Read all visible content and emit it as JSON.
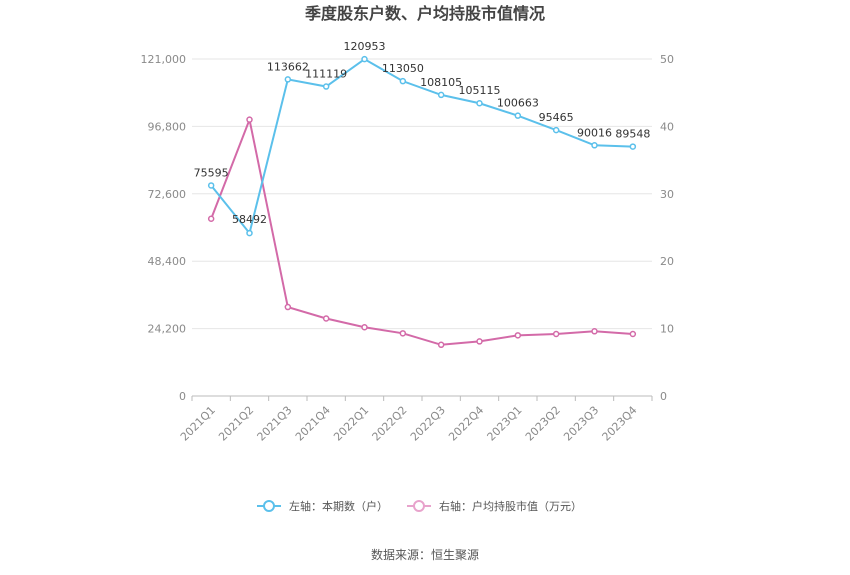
{
  "chart_data": {
    "type": "line",
    "title": "季度股东户数、户均持股市值情况",
    "categories": [
      "2021Q1",
      "2021Q2",
      "2021Q3",
      "2021Q4",
      "2022Q1",
      "2022Q2",
      "2022Q3",
      "2022Q4",
      "2023Q1",
      "2023Q2",
      "2023Q3",
      "2023Q4"
    ],
    "left_axis": {
      "ylim": [
        0,
        121000
      ],
      "ticks": [
        0,
        24200,
        48400,
        72600,
        96800,
        121000
      ],
      "tick_labels": [
        "0",
        "24,200",
        "48,400",
        "72,600",
        "96,800",
        "121,000"
      ]
    },
    "right_axis": {
      "ylim": [
        0,
        50
      ],
      "ticks": [
        0,
        10,
        20,
        30,
        40,
        50
      ],
      "tick_labels": [
        "0",
        "10",
        "20",
        "30",
        "40",
        "50"
      ]
    },
    "series": [
      {
        "name": "左轴：本期数（户）",
        "axis": "left",
        "color": "#5bc0eb",
        "values": [
          75595,
          58492,
          113662,
          111119,
          120953,
          113050,
          108105,
          105115,
          100663,
          95465,
          90016,
          89548
        ],
        "labels": [
          "75595",
          "58492",
          "113662",
          "111119",
          "120953",
          "113050",
          "108105",
          "105115",
          "100663",
          "95465",
          "90016",
          "89548"
        ]
      },
      {
        "name": "右轴：户均持股市值（万元）",
        "axis": "right",
        "color": "#d36aa8",
        "values": [
          26.3,
          41.0,
          13.2,
          11.5,
          10.2,
          9.3,
          7.6,
          8.1,
          9.0,
          9.2,
          9.6,
          9.2
        ]
      }
    ],
    "grid": true,
    "legend_position": "bottom"
  },
  "source": "数据来源：恒生聚源"
}
